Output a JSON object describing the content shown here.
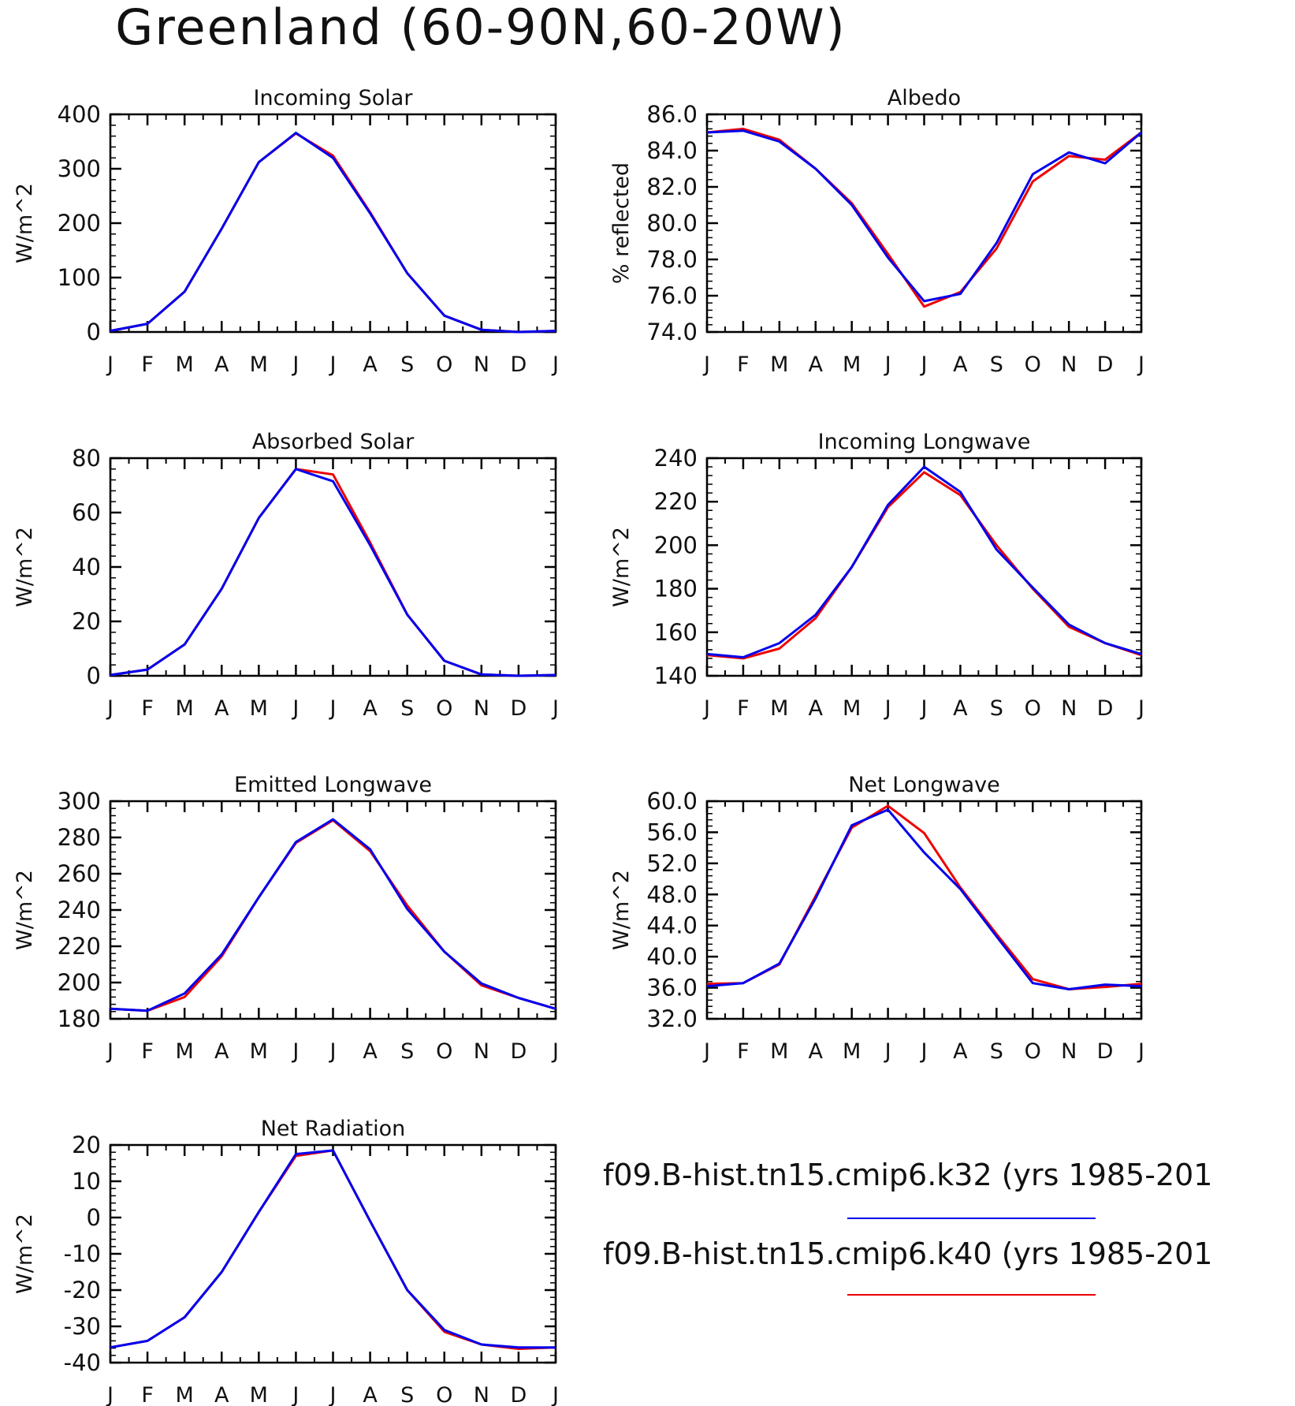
{
  "page_title": "Greenland (60-90N,60-20W)",
  "months": [
    "J",
    "F",
    "M",
    "A",
    "M",
    "J",
    "J",
    "A",
    "S",
    "O",
    "N",
    "D",
    "J"
  ],
  "colors": {
    "k32": "#0000ee",
    "k40": "#ee0000",
    "axis": "#000000"
  },
  "legend": [
    {
      "label": "f09.B-hist.tn15.cmip6.k32 (yrs 1985-201",
      "color": "#0000ee"
    },
    {
      "label": "f09.B-hist.tn15.cmip6.k40 (yrs 1985-201",
      "color": "#ee0000"
    }
  ],
  "chart_data": [
    {
      "type": "line",
      "title": "Incoming Solar",
      "ylabel": "W/m^2",
      "ylim": [
        0,
        400
      ],
      "yticks": [
        0,
        100,
        200,
        300,
        400
      ],
      "ytick_labels": [
        "0",
        "100",
        "200",
        "300",
        "400"
      ],
      "yminor": 20,
      "grid": false,
      "series": [
        {
          "values": [
            2,
            15,
            74,
            190,
            312,
            366,
            320,
            218,
            108,
            30,
            4,
            0,
            2
          ]
        },
        {
          "values": [
            2,
            15,
            74,
            190,
            312,
            365,
            324,
            220,
            108,
            30,
            4,
            0,
            2
          ]
        }
      ]
    },
    {
      "type": "line",
      "title": "Albedo",
      "ylabel": "% reflected",
      "ylim": [
        74,
        86
      ],
      "yticks": [
        74,
        76,
        78,
        80,
        82,
        84,
        86
      ],
      "ytick_labels": [
        "74.0",
        "76.0",
        "78.0",
        "80.0",
        "82.0",
        "84.0",
        "86.0"
      ],
      "yminor": 0.4,
      "grid": false,
      "series": [
        {
          "values": [
            85.0,
            85.1,
            84.5,
            83.0,
            81.0,
            78.1,
            75.7,
            76.1,
            78.9,
            82.7,
            83.9,
            83.3,
            85.0
          ]
        },
        {
          "values": [
            85.0,
            85.2,
            84.6,
            83.0,
            81.1,
            78.3,
            75.4,
            76.2,
            78.6,
            82.3,
            83.7,
            83.5,
            85.0
          ]
        }
      ]
    },
    {
      "type": "line",
      "title": "Absorbed Solar",
      "ylabel": "W/m^2",
      "ylim": [
        0,
        80
      ],
      "yticks": [
        0,
        20,
        40,
        60,
        80
      ],
      "ytick_labels": [
        "0",
        "20",
        "40",
        "60",
        "80"
      ],
      "yminor": 4,
      "grid": false,
      "series": [
        {
          "values": [
            0.3,
            2.3,
            11.5,
            32,
            58,
            76,
            71.5,
            48,
            22.5,
            5.5,
            0.5,
            0,
            0.3
          ]
        },
        {
          "values": [
            0.3,
            2.3,
            11.5,
            32,
            58,
            76,
            74,
            49,
            22.5,
            5.5,
            0.5,
            0,
            0.3
          ]
        }
      ]
    },
    {
      "type": "line",
      "title": "Incoming Longwave",
      "ylabel": "W/m^2",
      "ylim": [
        140,
        240
      ],
      "yticks": [
        140,
        160,
        180,
        200,
        220,
        240
      ],
      "ytick_labels": [
        "140",
        "160",
        "180",
        "200",
        "220",
        "240"
      ],
      "yminor": 4,
      "grid": false,
      "series": [
        {
          "values": [
            150,
            148.5,
            155,
            168,
            190,
            218.5,
            236,
            224.5,
            198,
            180.5,
            163.5,
            155,
            150
          ]
        },
        {
          "values": [
            149.5,
            148,
            152.5,
            166.5,
            190,
            217.5,
            233.5,
            223,
            200,
            180,
            162.5,
            155,
            149.5
          ]
        }
      ]
    },
    {
      "type": "line",
      "title": "Emitted Longwave",
      "ylabel": "W/m^2",
      "ylim": [
        180,
        300
      ],
      "yticks": [
        180,
        200,
        220,
        240,
        260,
        280,
        300
      ],
      "ytick_labels": [
        "180",
        "200",
        "220",
        "240",
        "260",
        "280",
        "300"
      ],
      "yminor": 4,
      "grid": false,
      "series": [
        {
          "values": [
            185.5,
            184.5,
            194,
            215.5,
            247,
            277.5,
            290,
            273.5,
            240.5,
            217,
            199.5,
            191.5,
            185.5
          ]
        },
        {
          "values": [
            185.5,
            184.5,
            192,
            214.5,
            247,
            277,
            289.5,
            272.5,
            242.5,
            217,
            198.5,
            191.5,
            185.5
          ]
        }
      ]
    },
    {
      "type": "line",
      "title": "Net Longwave",
      "ylabel": "W/m^2",
      "ylim": [
        32,
        60
      ],
      "yticks": [
        32,
        36,
        40,
        44,
        48,
        52,
        56,
        60
      ],
      "ytick_labels": [
        "32.0",
        "36.0",
        "40.0",
        "44.0",
        "48.0",
        "52.0",
        "56.0",
        "60.0"
      ],
      "yminor": 0.8,
      "grid": false,
      "series": [
        {
          "values": [
            36.2,
            36.6,
            39.1,
            47.5,
            56.9,
            58.9,
            53.4,
            48.7,
            42.6,
            36.6,
            35.8,
            36.4,
            36.2
          ]
        },
        {
          "values": [
            36.5,
            36.6,
            39.0,
            47.8,
            56.6,
            59.4,
            55.9,
            48.9,
            42.9,
            37.1,
            35.8,
            36.1,
            36.5
          ]
        }
      ]
    },
    {
      "type": "line",
      "title": "Net Radiation",
      "ylabel": "W/m^2",
      "ylim": [
        -40,
        20
      ],
      "yticks": [
        -40,
        -30,
        -20,
        -10,
        0,
        10,
        20
      ],
      "ytick_labels": [
        "-40",
        "-30",
        "-20",
        "-10",
        "0",
        "10",
        "20"
      ],
      "yminor": 2,
      "grid": false,
      "series": [
        {
          "values": [
            -35.8,
            -34,
            -27.5,
            -15,
            1.5,
            17.5,
            18.5,
            -1,
            -20,
            -31,
            -35,
            -35.8,
            -35.8
          ]
        },
        {
          "values": [
            -35.8,
            -34,
            -27.5,
            -15,
            1.5,
            17,
            18.5,
            -1,
            -20,
            -31.5,
            -35,
            -36.2,
            -35.8
          ]
        }
      ]
    }
  ]
}
